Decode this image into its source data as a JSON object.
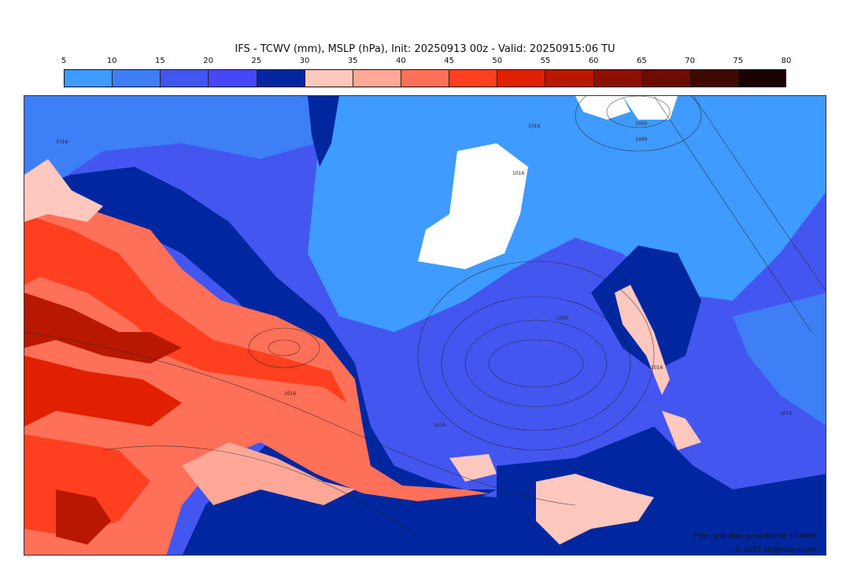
{
  "title": "IFS - TCWV (mm), MSLP (hPa), Init: 20250913 00z - Valid: 20250915:06 TU",
  "colorbar": {
    "ticks": [
      "5",
      "10",
      "15",
      "20",
      "25",
      "30",
      "35",
      "40",
      "45",
      "50",
      "55",
      "60",
      "65",
      "70",
      "75",
      "80"
    ],
    "colors": [
      "#3f9bff",
      "#3e7ff5",
      "#4357f0",
      "#4646fb",
      "#0027a0",
      "#ffc8be",
      "#ffa898",
      "#ff7058",
      "#ff4020",
      "#e02000",
      "#b81800",
      "#8c1000",
      "#6a0c00",
      "#3f0800",
      "#1a0000"
    ]
  },
  "map": {
    "isobar_labels": [
      "1000",
      "1000",
      "1000",
      "1016",
      "1016",
      "1016",
      "1016",
      "1016",
      "1016",
      "1016"
    ]
  },
  "credits": {
    "line1": "from grib files provided by ECMWF",
    "line2": "© 2025 sb@irizone.net"
  }
}
